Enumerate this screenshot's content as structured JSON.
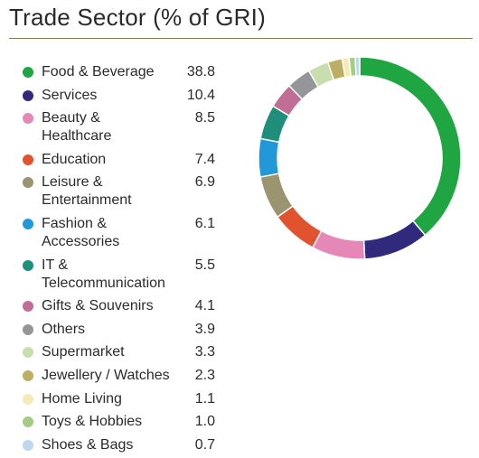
{
  "title": "Trade Sector (% of GRI)",
  "chart_data": {
    "type": "pie",
    "title": "Trade Sector (% of GRI)",
    "legend_position": "left",
    "categories": [
      "Food & Beverage",
      "Services",
      "Beauty & Healthcare",
      "Education",
      "Leisure & Entertainment",
      "Fashion & Accessories",
      "IT & Telecommunication",
      "Gifts & Souvenirs",
      "Others",
      "Supermarket",
      "Jewellery / Watches",
      "Home Living",
      "Toys & Hobbies",
      "Shoes & Bags"
    ],
    "values": [
      38.8,
      10.4,
      8.5,
      7.4,
      6.9,
      6.1,
      5.5,
      4.1,
      3.9,
      3.3,
      2.3,
      1.1,
      1.0,
      0.7
    ],
    "value_labels": [
      "38.8",
      "10.4",
      "8.5",
      "7.4",
      "6.9",
      "6.1",
      "5.5",
      "4.1",
      "3.9",
      "3.3",
      "2.3",
      "1.1",
      "1.0",
      "0.7"
    ],
    "label_lines": [
      [
        "Food & Beverage"
      ],
      [
        "Services"
      ],
      [
        "Beauty &",
        "Healthcare"
      ],
      [
        "Education"
      ],
      [
        "Leisure &",
        "Entertainment"
      ],
      [
        "Fashion &",
        "Accessories"
      ],
      [
        "IT &",
        "Telecommunication"
      ],
      [
        "Gifts & Souvenirs"
      ],
      [
        "Others"
      ],
      [
        "Supermarket"
      ],
      [
        "Jewellery / Watches"
      ],
      [
        "Home Living"
      ],
      [
        "Toys & Hobbies"
      ],
      [
        "Shoes & Bags"
      ]
    ],
    "colors": [
      "#1fa541",
      "#312a7c",
      "#e588b8",
      "#e1532e",
      "#9a9470",
      "#2398d8",
      "#1f8f7c",
      "#c06e96",
      "#96969a",
      "#c9deae",
      "#bcae62",
      "#f5ecb5",
      "#a5cc85",
      "#bcd7ee"
    ]
  }
}
